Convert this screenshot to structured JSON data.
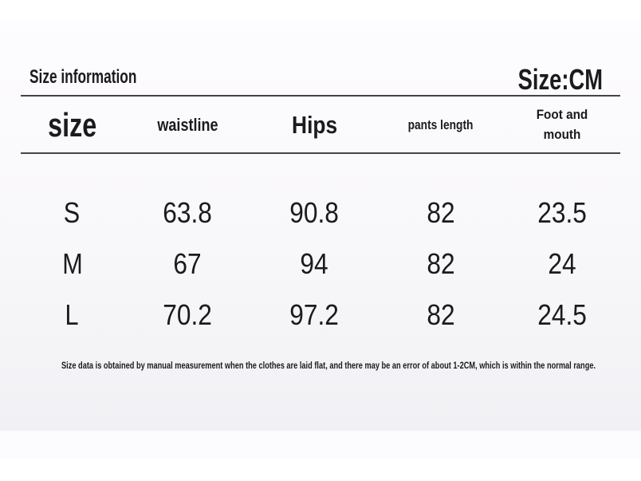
{
  "header": {
    "title": "Size information",
    "unit": "Size:CM"
  },
  "chart_data": {
    "type": "table",
    "title": "Size information",
    "unit": "CM",
    "columns": [
      "size",
      "waistline",
      "Hips",
      "pants length",
      "Foot and mouth"
    ],
    "rows": [
      [
        "S",
        "63.8",
        "90.8",
        "82",
        "23.5"
      ],
      [
        "M",
        "67",
        "94",
        "82",
        "24"
      ],
      [
        "L",
        "70.2",
        "97.2",
        "82",
        "24.5"
      ]
    ]
  },
  "footer": {
    "note": "Size data is obtained by manual measurement when the clothes are laid flat, and there may be an error of about 1-2CM, which is within the normal range."
  },
  "colors": {
    "text": "#1b1a1d",
    "rule": "#45434a",
    "panel_top": "#fdfcfe",
    "panel_bottom": "#f1f0f4"
  }
}
